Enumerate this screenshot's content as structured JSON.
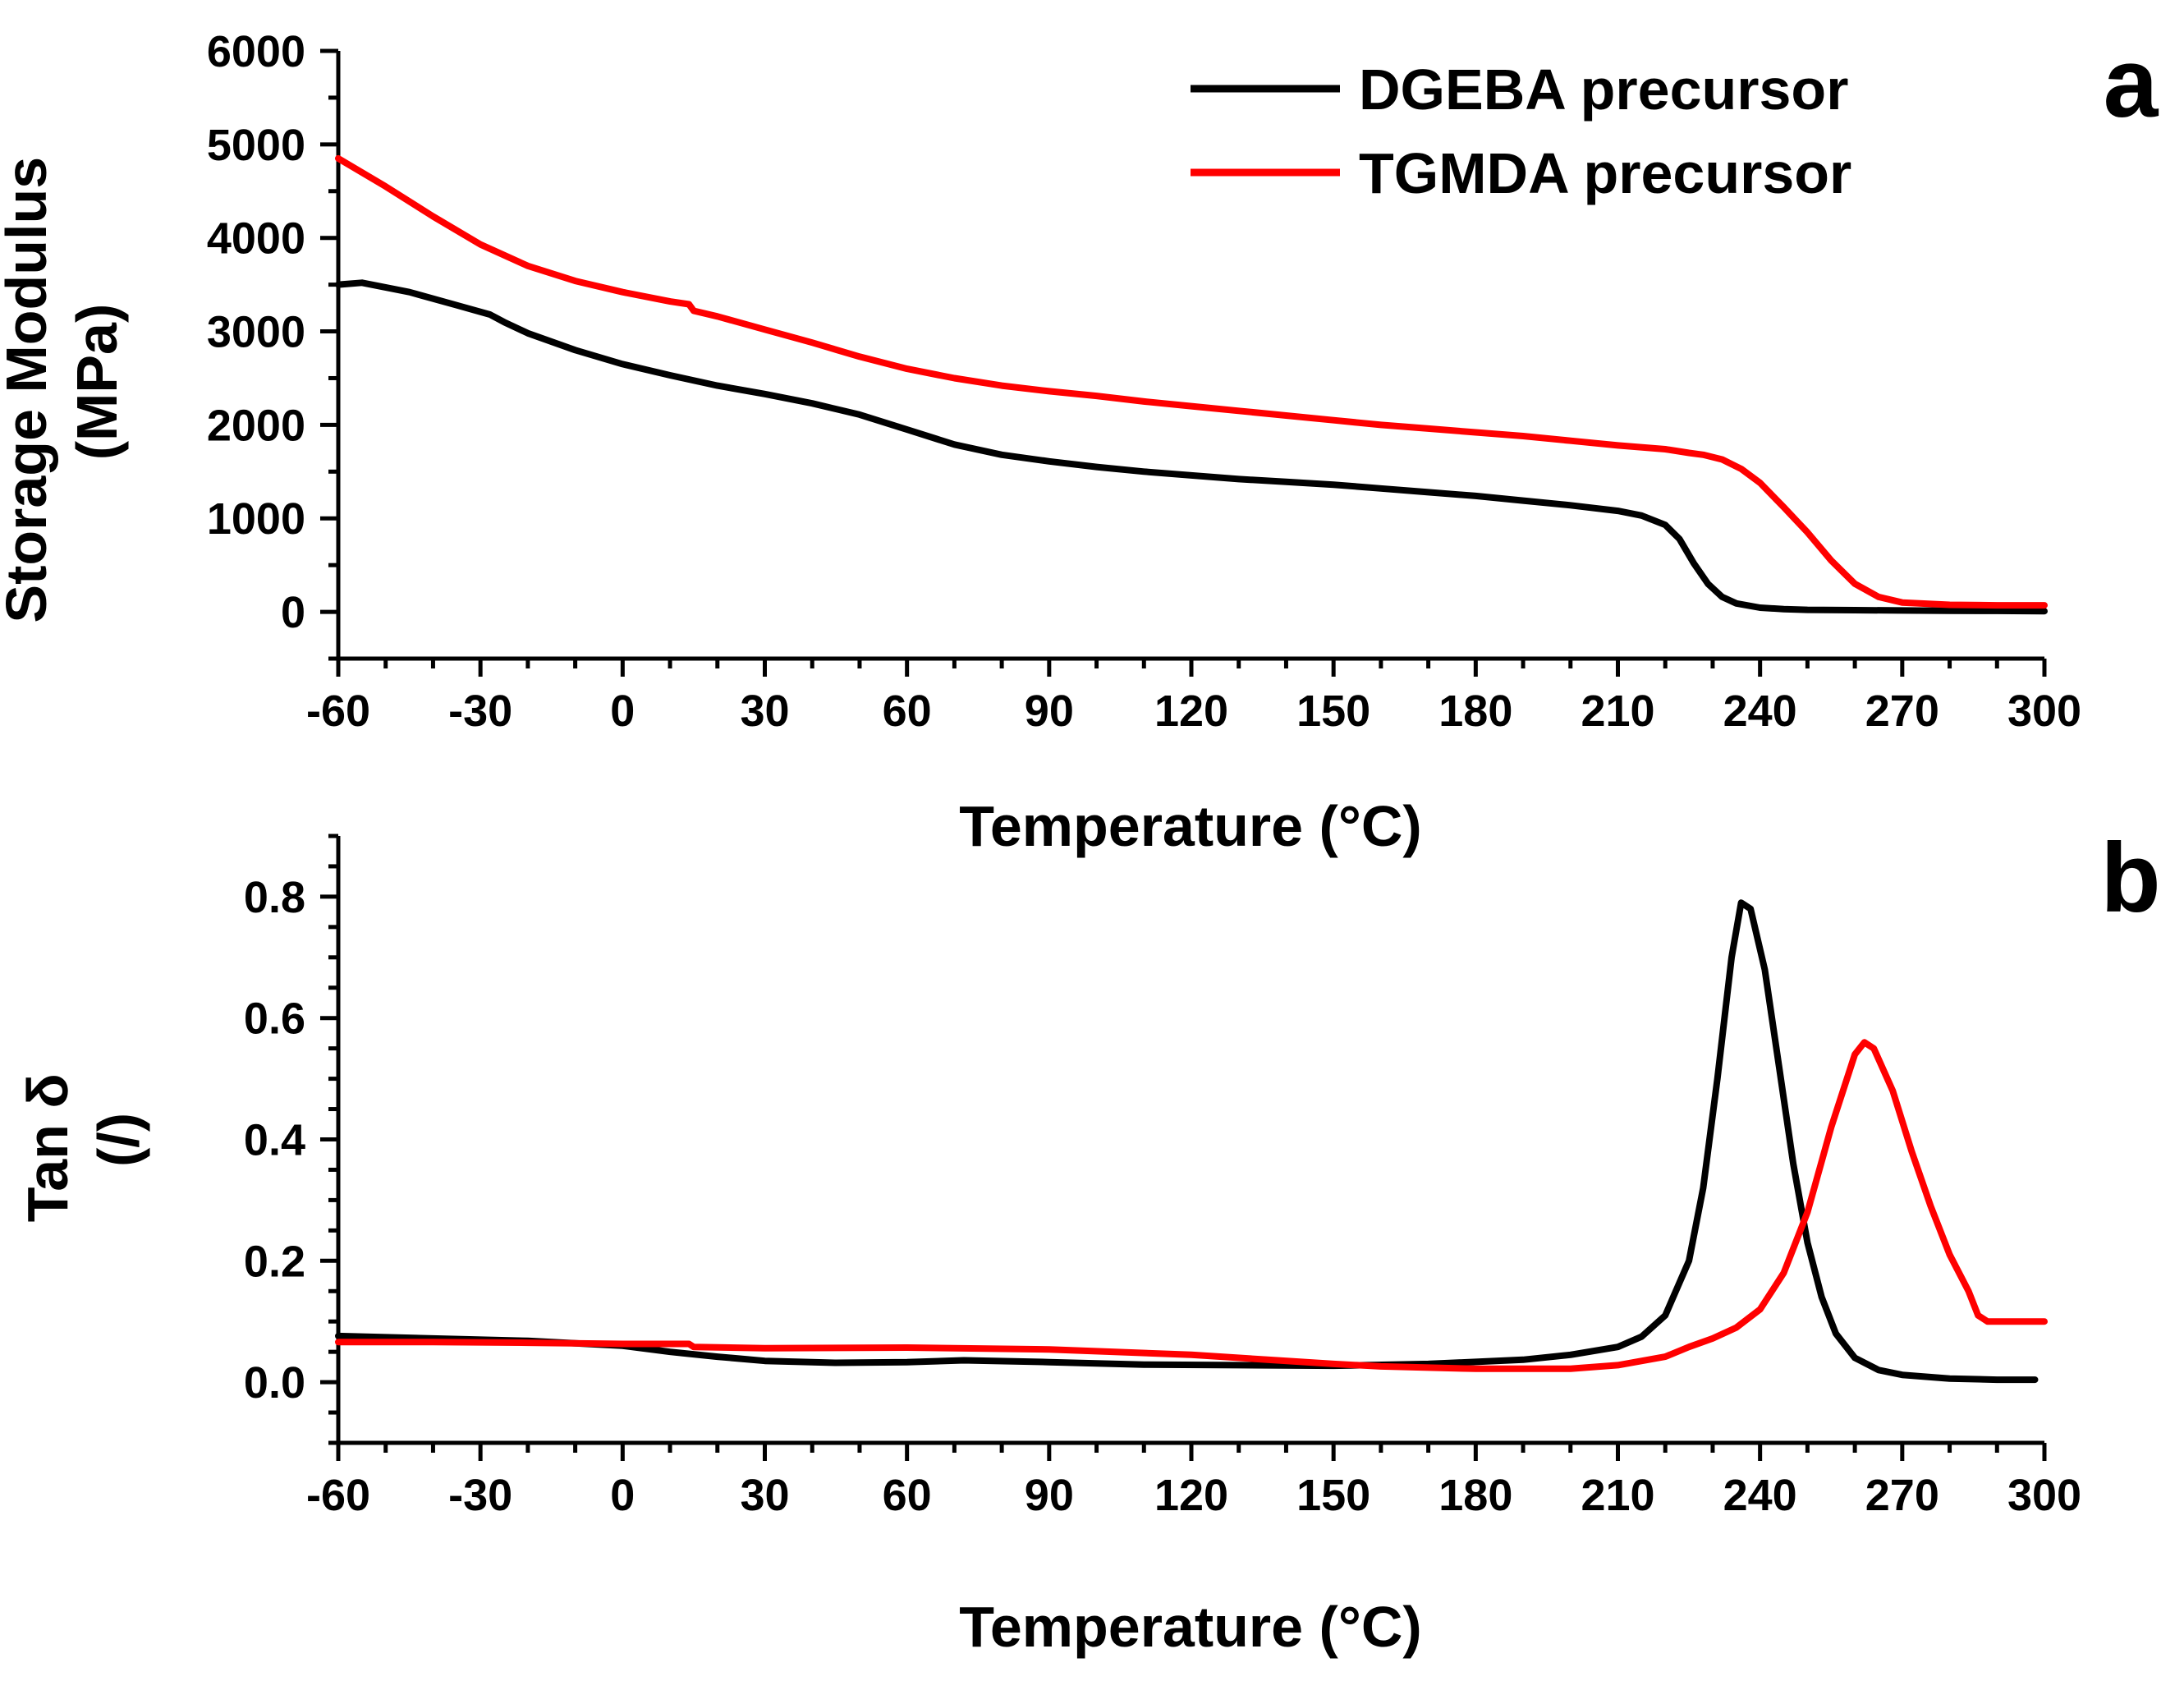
{
  "colors": {
    "dgeba": "#000000",
    "tgmda": "#ff0000"
  },
  "chart_data": [
    {
      "type": "line",
      "panel": "a",
      "xlabel": "Temperature (°C)",
      "ylabel_lines": [
        "Storage Modulus",
        "(MPa)"
      ],
      "xlim": [
        -60,
        300
      ],
      "ylim": [
        -500,
        6000
      ],
      "xticks": [
        -60,
        -30,
        0,
        30,
        60,
        90,
        120,
        150,
        180,
        210,
        240,
        270,
        300
      ],
      "xtick_labels": [
        "-60",
        "-30",
        "0",
        "30",
        "60",
        "90",
        "120",
        "150",
        "180",
        "210",
        "240",
        "270",
        "300"
      ],
      "yticks": [
        0,
        1000,
        2000,
        3000,
        4000,
        5000,
        6000
      ],
      "ytick_labels": [
        "0",
        "1000",
        "2000",
        "3000",
        "4000",
        "5000",
        "6000"
      ],
      "legend": {
        "placement": "top-right",
        "entries": [
          "DGEBA precursor",
          "TGMDA precursor"
        ]
      },
      "series": [
        {
          "name": "DGEBA precursor",
          "color": "#000000",
          "x": [
            -60,
            -55,
            -45,
            -35,
            -28,
            -25,
            -20,
            -10,
            0,
            10,
            20,
            30,
            40,
            50,
            60,
            70,
            80,
            90,
            100,
            110,
            120,
            130,
            140,
            150,
            160,
            170,
            180,
            190,
            200,
            210,
            215,
            220,
            223,
            226,
            229,
            232,
            235,
            240,
            245,
            250,
            260,
            270,
            280,
            290,
            300
          ],
          "y": [
            3500,
            3520,
            3420,
            3280,
            3180,
            3100,
            2980,
            2800,
            2650,
            2530,
            2420,
            2330,
            2230,
            2110,
            1950,
            1790,
            1680,
            1610,
            1550,
            1500,
            1460,
            1420,
            1390,
            1360,
            1320,
            1280,
            1240,
            1190,
            1140,
            1080,
            1030,
            930,
            780,
            520,
            300,
            160,
            90,
            45,
            30,
            22,
            18,
            15,
            12,
            10,
            8
          ]
        },
        {
          "name": "TGMDA precursor",
          "color": "#ff0000",
          "x": [
            -60,
            -50,
            -40,
            -30,
            -20,
            -10,
            0,
            10,
            14,
            15,
            20,
            30,
            40,
            50,
            60,
            70,
            80,
            90,
            100,
            110,
            120,
            130,
            140,
            150,
            160,
            170,
            180,
            190,
            200,
            210,
            220,
            225,
            228,
            232,
            236,
            240,
            245,
            250,
            255,
            260,
            265,
            270,
            280,
            290,
            300
          ],
          "y": [
            4850,
            4550,
            4230,
            3930,
            3700,
            3540,
            3420,
            3320,
            3290,
            3220,
            3160,
            3020,
            2880,
            2730,
            2600,
            2500,
            2420,
            2360,
            2310,
            2250,
            2200,
            2150,
            2100,
            2050,
            2000,
            1960,
            1920,
            1880,
            1830,
            1780,
            1740,
            1700,
            1680,
            1630,
            1530,
            1380,
            1120,
            850,
            550,
            300,
            160,
            100,
            75,
            70,
            70
          ]
        }
      ]
    },
    {
      "type": "line",
      "panel": "b",
      "xlabel": "Temperature (°C)",
      "ylabel_lines": [
        "Tan δ",
        "(/)"
      ],
      "xlim": [
        -60,
        300
      ],
      "ylim": [
        -0.1,
        0.9
      ],
      "xticks": [
        -60,
        -30,
        0,
        30,
        60,
        90,
        120,
        150,
        180,
        210,
        240,
        270,
        300
      ],
      "xtick_labels": [
        "-60",
        "-30",
        "0",
        "30",
        "60",
        "90",
        "120",
        "150",
        "180",
        "210",
        "240",
        "270",
        "300"
      ],
      "yticks": [
        0.0,
        0.2,
        0.4,
        0.6,
        0.8
      ],
      "ytick_labels": [
        "0.0",
        "0.2",
        "0.4",
        "0.6",
        "0.8"
      ],
      "series": [
        {
          "name": "DGEBA precursor",
          "color": "#000000",
          "x": [
            -60,
            -40,
            -20,
            0,
            10,
            20,
            30,
            45,
            60,
            72,
            90,
            110,
            130,
            150,
            170,
            190,
            200,
            210,
            215,
            220,
            225,
            228,
            231,
            234,
            236,
            238,
            241,
            244,
            247,
            250,
            253,
            256,
            260,
            265,
            270,
            280,
            290,
            298
          ],
          "y": [
            0.076,
            0.072,
            0.068,
            0.06,
            0.05,
            0.042,
            0.035,
            0.032,
            0.033,
            0.036,
            0.033,
            0.029,
            0.028,
            0.027,
            0.03,
            0.037,
            0.045,
            0.058,
            0.075,
            0.11,
            0.2,
            0.32,
            0.5,
            0.7,
            0.79,
            0.78,
            0.68,
            0.52,
            0.36,
            0.23,
            0.14,
            0.08,
            0.04,
            0.02,
            0.012,
            0.006,
            0.004,
            0.004
          ]
        },
        {
          "name": "TGMDA precursor",
          "color": "#ff0000",
          "x": [
            -60,
            -40,
            -20,
            0,
            14,
            15,
            30,
            60,
            90,
            120,
            150,
            160,
            180,
            200,
            210,
            220,
            225,
            230,
            235,
            240,
            245,
            250,
            255,
            260,
            262,
            264,
            268,
            272,
            276,
            280,
            284,
            286,
            288,
            292,
            296,
            300
          ],
          "y": [
            0.066,
            0.066,
            0.065,
            0.063,
            0.063,
            0.058,
            0.056,
            0.057,
            0.054,
            0.045,
            0.03,
            0.026,
            0.022,
            0.022,
            0.028,
            0.042,
            0.058,
            0.072,
            0.09,
            0.12,
            0.18,
            0.28,
            0.42,
            0.54,
            0.56,
            0.55,
            0.48,
            0.38,
            0.29,
            0.21,
            0.15,
            0.11,
            0.1,
            0.1,
            0.1,
            0.1
          ]
        }
      ]
    }
  ]
}
